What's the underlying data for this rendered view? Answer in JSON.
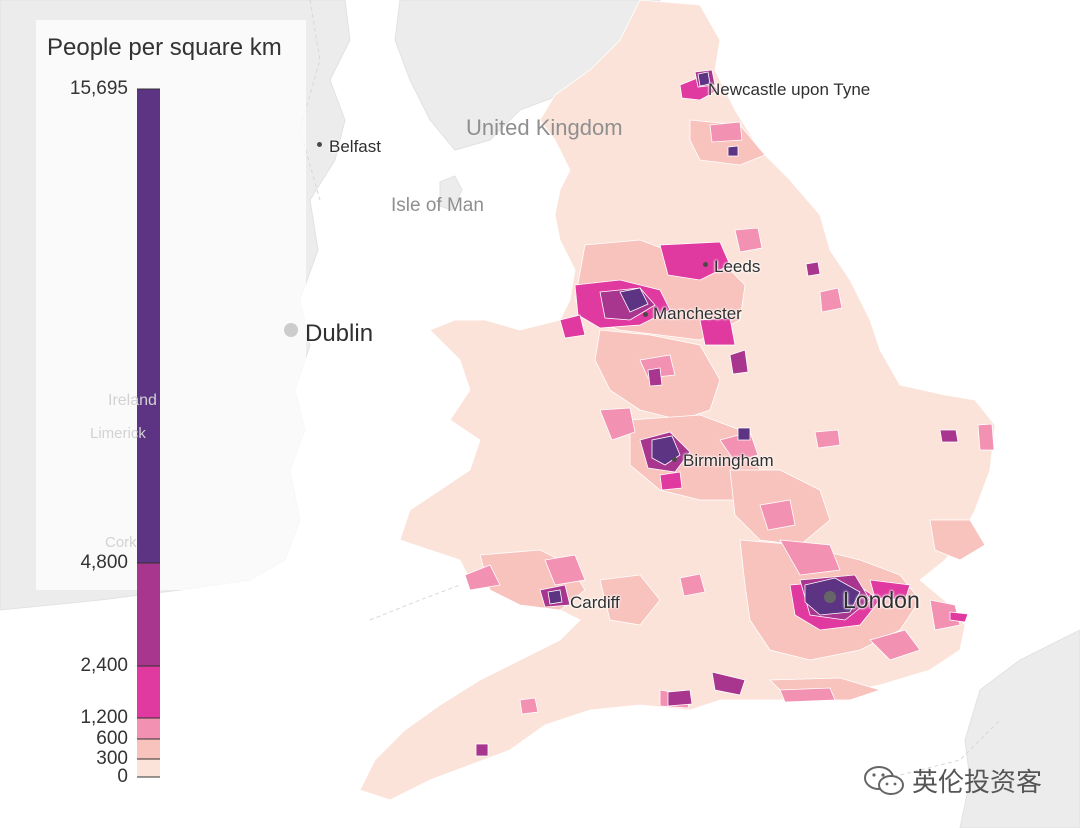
{
  "legend": {
    "title": "People per square km",
    "ticks": [
      {
        "label": "15,695",
        "value": 15695
      },
      {
        "label": "4,800",
        "value": 4800
      },
      {
        "label": "2,400",
        "value": 2400
      },
      {
        "label": "1,200",
        "value": 1200
      },
      {
        "label": "600",
        "value": 600
      },
      {
        "label": "300",
        "value": 300
      },
      {
        "label": "0",
        "value": 0
      }
    ],
    "bins": [
      {
        "from": 4800,
        "to": 15695,
        "color": "#5c3483"
      },
      {
        "from": 2400,
        "to": 4800,
        "color": "#a8358e"
      },
      {
        "from": 1200,
        "to": 2400,
        "color": "#e0399f"
      },
      {
        "from": 600,
        "to": 1200,
        "color": "#f291b2"
      },
      {
        "from": 300,
        "to": 600,
        "color": "#f8c2bd"
      },
      {
        "from": 0,
        "to": 300,
        "color": "#fbe3d9"
      }
    ]
  },
  "places": {
    "newcastle": "Newcastle upon Tyne",
    "belfast": "Belfast",
    "isle_of_man": "Isle of Man",
    "united_kingdom": "United Kingdom",
    "dublin": "Dublin",
    "leeds": "Leeds",
    "manchester": "Manchester",
    "birmingham": "Birmingham",
    "cardiff": "Cardiff",
    "london": "London",
    "ireland_faint": "Ireland",
    "limerick_faint": "Limerick",
    "cork_faint": "Cork"
  },
  "watermark": "英伦投资客",
  "colors": {
    "sea": "#ffffff",
    "land_other": "#ececec",
    "land_base": "#fbe3d9",
    "border": "#ffffff"
  }
}
